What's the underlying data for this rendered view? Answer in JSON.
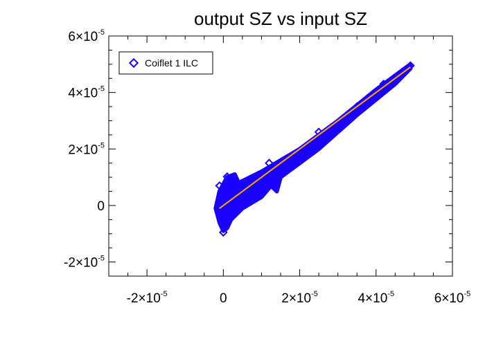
{
  "chart_data": {
    "type": "scatter",
    "title": "output SZ vs input SZ",
    "xlabel": "",
    "ylabel": "",
    "xlim": [
      -3e-05,
      6e-05
    ],
    "ylim": [
      -2.5e-05,
      6e-05
    ],
    "x_ticks": [
      {
        "value": -2e-05,
        "mantissa": "-2",
        "exponent": "-5"
      },
      {
        "value": 0,
        "mantissa": "0",
        "exponent": ""
      },
      {
        "value": 2e-05,
        "mantissa": "2",
        "exponent": "-5"
      },
      {
        "value": 4e-05,
        "mantissa": "4",
        "exponent": "-5"
      },
      {
        "value": 6e-05,
        "mantissa": "6",
        "exponent": "-5"
      }
    ],
    "y_ticks": [
      {
        "value": -2e-05,
        "mantissa": "-2",
        "exponent": "-5"
      },
      {
        "value": 0,
        "mantissa": "0",
        "exponent": ""
      },
      {
        "value": 2e-05,
        "mantissa": "2",
        "exponent": "-5"
      },
      {
        "value": 4e-05,
        "mantissa": "4",
        "exponent": "-5"
      },
      {
        "value": 6e-05,
        "mantissa": "6",
        "exponent": "-5"
      }
    ],
    "legend": {
      "position": "top-left",
      "entries": [
        "Coiflet 1 ILC"
      ]
    },
    "grid": false,
    "series": [
      {
        "name": "Coiflet 1 ILC",
        "marker": "diamond-open",
        "color": "#1a00ff",
        "cloud_outline": [
          [
            -1e-06,
            5e-06
          ],
          [
            1e-06,
            1e-05
          ],
          [
            3e-06,
            1.1e-05
          ],
          [
            4e-06,
            8e-06
          ],
          [
            1e-05,
            1.2e-05
          ],
          [
            2e-05,
            2e-05
          ],
          [
            3e-05,
            3e-05
          ],
          [
            4e-05,
            4.1e-05
          ],
          [
            4.9e-05,
            5e-05
          ],
          [
            4.9e-05,
            4.85e-05
          ],
          [
            4.5e-05,
            4.3e-05
          ],
          [
            3.5e-05,
            3.2e-05
          ],
          [
            2.5e-05,
            2e-05
          ],
          [
            1.5e-05,
            1e-05
          ],
          [
            1.4e-05,
            5e-06
          ],
          [
            1.25e-05,
            7e-06
          ],
          [
            1e-05,
            3e-06
          ],
          [
            5e-06,
            -1e-06
          ],
          [
            2e-06,
            -5e-06
          ],
          [
            1e-06,
            -8e-06
          ],
          [
            0,
            -9e-06
          ],
          [
            -1e-06,
            -6e-06
          ],
          [
            -2e-06,
            -1e-06
          ]
        ],
        "points": [
          [
            0,
            -9.5e-06
          ],
          [
            -1e-06,
            7e-06
          ],
          [
            1e-06,
            1.02e-05
          ],
          [
            4.9e-05,
            4.95e-05
          ],
          [
            2.5e-05,
            2.6e-05
          ],
          [
            1.2e-05,
            1.5e-05
          ],
          [
            3.5e-05,
            3.5e-05
          ],
          [
            4.2e-05,
            4.3e-05
          ],
          [
            8e-06,
            4e-06
          ],
          [
            1.8e-05,
            1.6e-05
          ],
          [
            3e-05,
            2.7e-05
          ]
        ]
      },
      {
        "name": "",
        "type": "line",
        "color": "#ffa500",
        "x": [
          -1e-06,
          4.9e-05
        ],
        "y": [
          -1e-06,
          4.9e-05
        ]
      }
    ]
  }
}
